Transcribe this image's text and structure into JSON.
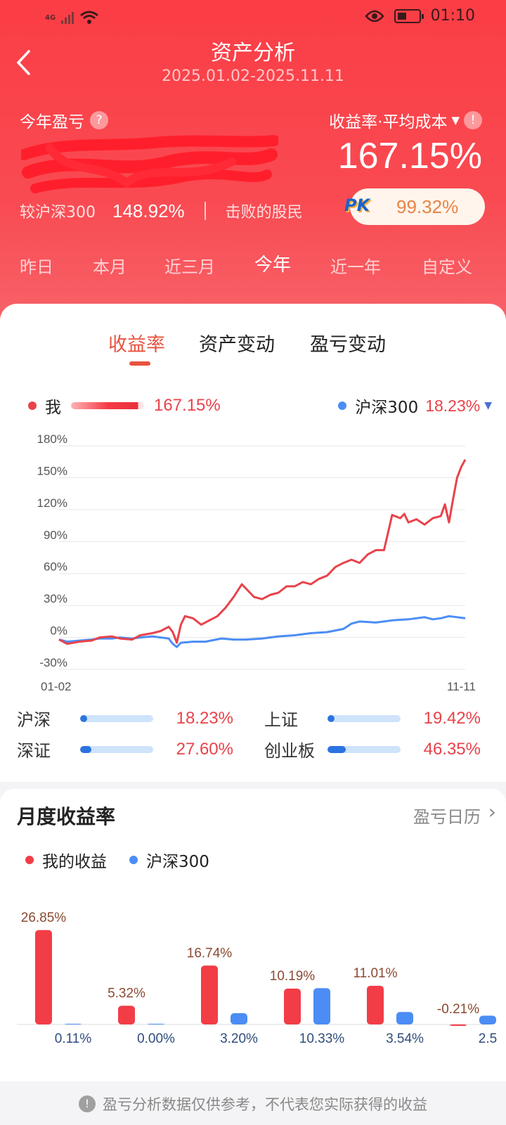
{
  "status_bar": {
    "network": "4G",
    "time": "01:10"
  },
  "header": {
    "title": "资产分析",
    "date_range": "2025.01.02-2025.11.11",
    "pl_label": "今年盈亏",
    "rate_label": "收益率·平均成本",
    "rate_value": "167.15%",
    "compare_label": "较沪深300",
    "compare_value": "148.92%",
    "beat_label": "击败的股民",
    "pk_logo": "PK",
    "beat_value": "99.32%"
  },
  "periods": [
    "昨日",
    "本月",
    "近三月",
    "今年",
    "近一年",
    "自定义"
  ],
  "active_period": "今年",
  "tabs": [
    "收益率",
    "资产变动",
    "盈亏变动"
  ],
  "active_tab": "收益率",
  "chart_legend": {
    "me_label": "我",
    "me_value": "167.15%",
    "benchmark_label": "沪深300",
    "benchmark_value": "18.23%"
  },
  "chart_data": {
    "type": "line",
    "ylim": [
      -30,
      180
    ],
    "yticks": [
      "180%",
      "150%",
      "120%",
      "90%",
      "60%",
      "30%",
      "0%",
      "-30%"
    ],
    "x_start_label": "01-02",
    "x_end_label": "11-11",
    "series": [
      {
        "name": "我",
        "color": "#e8434b",
        "x": [
          0,
          0.02,
          0.05,
          0.08,
          0.1,
          0.13,
          0.15,
          0.18,
          0.2,
          0.23,
          0.25,
          0.27,
          0.28,
          0.29,
          0.3,
          0.31,
          0.33,
          0.35,
          0.37,
          0.39,
          0.41,
          0.43,
          0.45,
          0.47,
          0.48,
          0.5,
          0.52,
          0.54,
          0.56,
          0.58,
          0.6,
          0.62,
          0.64,
          0.66,
          0.68,
          0.7,
          0.72,
          0.74,
          0.76,
          0.78,
          0.8,
          0.82,
          0.84,
          0.85,
          0.86,
          0.88,
          0.9,
          0.92,
          0.94,
          0.95,
          0.96,
          0.97,
          0.98,
          0.99,
          1.0
        ],
        "y": [
          -2,
          -6,
          -4,
          -3,
          0,
          1,
          -1,
          -2,
          2,
          4,
          6,
          10,
          5,
          -5,
          12,
          20,
          18,
          12,
          16,
          20,
          28,
          38,
          50,
          42,
          38,
          36,
          40,
          42,
          48,
          48,
          52,
          50,
          55,
          58,
          66,
          70,
          73,
          70,
          78,
          82,
          82,
          115,
          112,
          116,
          108,
          111,
          106,
          112,
          114,
          125,
          108,
          130,
          150,
          160,
          167
        ]
      },
      {
        "name": "沪深300",
        "color": "#4b8df5",
        "x": [
          0,
          0.02,
          0.05,
          0.08,
          0.1,
          0.13,
          0.15,
          0.18,
          0.2,
          0.23,
          0.25,
          0.27,
          0.28,
          0.29,
          0.3,
          0.33,
          0.36,
          0.4,
          0.43,
          0.46,
          0.5,
          0.54,
          0.58,
          0.62,
          0.66,
          0.7,
          0.72,
          0.74,
          0.78,
          0.82,
          0.86,
          0.88,
          0.9,
          0.92,
          0.94,
          0.96,
          0.98,
          1.0
        ],
        "y": [
          -2,
          -4,
          -3,
          -2,
          -1,
          -1,
          0,
          -1,
          0,
          1,
          0,
          -1,
          -6,
          -9,
          -5,
          -4,
          -4,
          -1,
          -2,
          -2,
          -1,
          1,
          2,
          4,
          5,
          8,
          13,
          15,
          14,
          16,
          17,
          18,
          19,
          17,
          18,
          20,
          19,
          18
        ]
      }
    ]
  },
  "indices": [
    {
      "name": "沪深",
      "value": "18.23%",
      "fill": 0.1
    },
    {
      "name": "上证",
      "value": "19.42%",
      "fill": 0.1
    },
    {
      "name": "深证",
      "value": "27.60%",
      "fill": 0.15
    },
    {
      "name": "创业板",
      "value": "46.35%",
      "fill": 0.25
    }
  ],
  "monthly": {
    "title": "月度收益率",
    "calendar_link": "盈亏日历",
    "legend_mine": "我的收益",
    "legend_benchmark": "沪深300",
    "colors": {
      "mine": "#f23d47",
      "benchmark": "#4b8df5",
      "label_mine": "#8a4a32",
      "label_benchmark": "#2f4d7a"
    },
    "chart_data": {
      "type": "bar",
      "series": [
        {
          "name": "我的收益",
          "values": [
            26.85,
            5.32,
            16.74,
            10.19,
            11.01,
            -0.21
          ],
          "labels": [
            "26.85%",
            "5.32%",
            "16.74%",
            "10.19%",
            "11.01%",
            "-0.21%"
          ]
        },
        {
          "name": "沪深300",
          "values": [
            0.11,
            0.0,
            3.2,
            10.33,
            3.54,
            2.5
          ],
          "labels": [
            "0.11%",
            "0.00%",
            "3.20%",
            "10.33%",
            "3.54%",
            "2.5"
          ]
        }
      ]
    }
  },
  "footer_note": "盈亏分析数据仅供参考，不代表您实际获得的收益"
}
